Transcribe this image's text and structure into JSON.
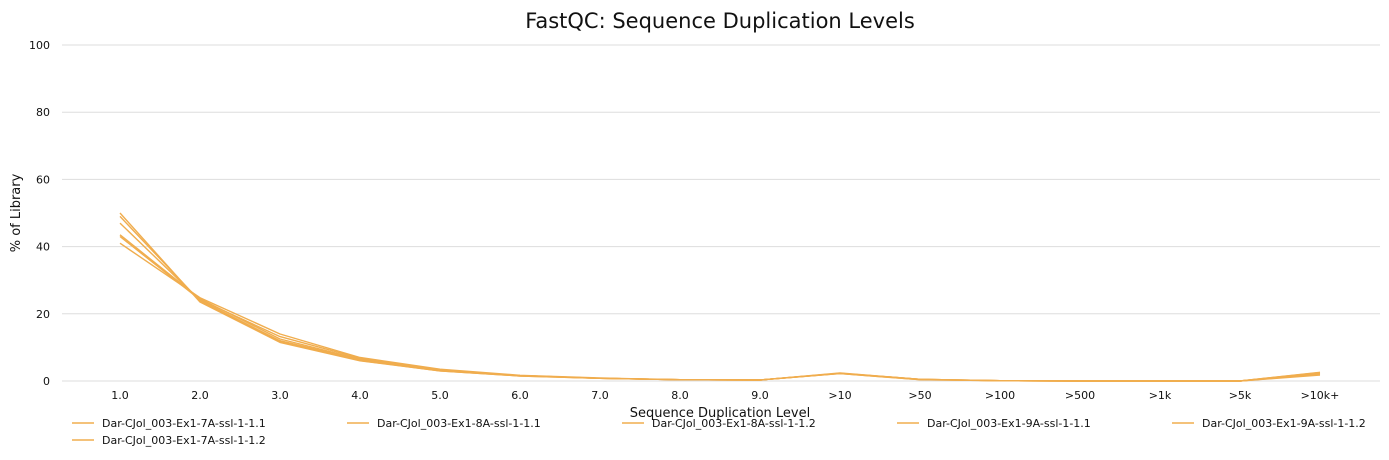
{
  "chart_data": {
    "type": "line",
    "title": "FastQC: Sequence Duplication Levels",
    "xlabel": "Sequence Duplication Level",
    "ylabel": "% of Library",
    "categories": [
      "1.0",
      "2.0",
      "3.0",
      "4.0",
      "5.0",
      "6.0",
      "7.0",
      "8.0",
      "9.0",
      ">10",
      ">50",
      ">100",
      ">500",
      ">1k",
      ">5k",
      ">10k+"
    ],
    "ylim": [
      0,
      100
    ],
    "yticks": [
      0,
      20,
      40,
      60,
      80,
      100
    ],
    "grid": true,
    "legend_position": "bottom",
    "series_color": "#f0ad4e",
    "series": [
      {
        "name": "Dar-CJol_003-Ex1-7A-ssl-1-1.1",
        "values": [
          43.5,
          24.5,
          12.5,
          6.5,
          3.2,
          1.6,
          0.8,
          0.4,
          0.3,
          2.3,
          0.5,
          0.1,
          0.0,
          0.0,
          0.0,
          2.2
        ]
      },
      {
        "name": "Dar-CJol_003-Ex1-7A-ssl-1-1.2",
        "values": [
          41.0,
          24.8,
          14.0,
          7.0,
          3.5,
          1.7,
          0.9,
          0.4,
          0.3,
          2.4,
          0.5,
          0.1,
          0.0,
          0.0,
          0.0,
          2.6
        ]
      },
      {
        "name": "Dar-CJol_003-Ex1-8A-ssl-1-1.1",
        "values": [
          50.0,
          23.5,
          11.5,
          6.0,
          3.0,
          1.5,
          0.8,
          0.4,
          0.3,
          2.2,
          0.4,
          0.1,
          0.0,
          0.0,
          0.0,
          2.0
        ]
      },
      {
        "name": "Dar-CJol_003-Ex1-8A-ssl-1-1.2",
        "values": [
          49.0,
          23.8,
          11.8,
          6.1,
          3.0,
          1.5,
          0.8,
          0.4,
          0.3,
          2.2,
          0.4,
          0.1,
          0.0,
          0.0,
          0.0,
          1.8
        ]
      },
      {
        "name": "Dar-CJol_003-Ex1-9A-ssl-1-1.1",
        "values": [
          47.0,
          24.0,
          12.0,
          6.3,
          3.1,
          1.6,
          0.8,
          0.4,
          0.3,
          2.3,
          0.5,
          0.1,
          0.0,
          0.0,
          0.0,
          2.4
        ]
      },
      {
        "name": "Dar-CJol_003-Ex1-9A-ssl-1-1.2",
        "values": [
          43.0,
          24.2,
          13.2,
          6.8,
          3.3,
          1.6,
          0.8,
          0.4,
          0.3,
          2.3,
          0.5,
          0.1,
          0.0,
          0.0,
          0.0,
          2.5
        ]
      }
    ]
  }
}
